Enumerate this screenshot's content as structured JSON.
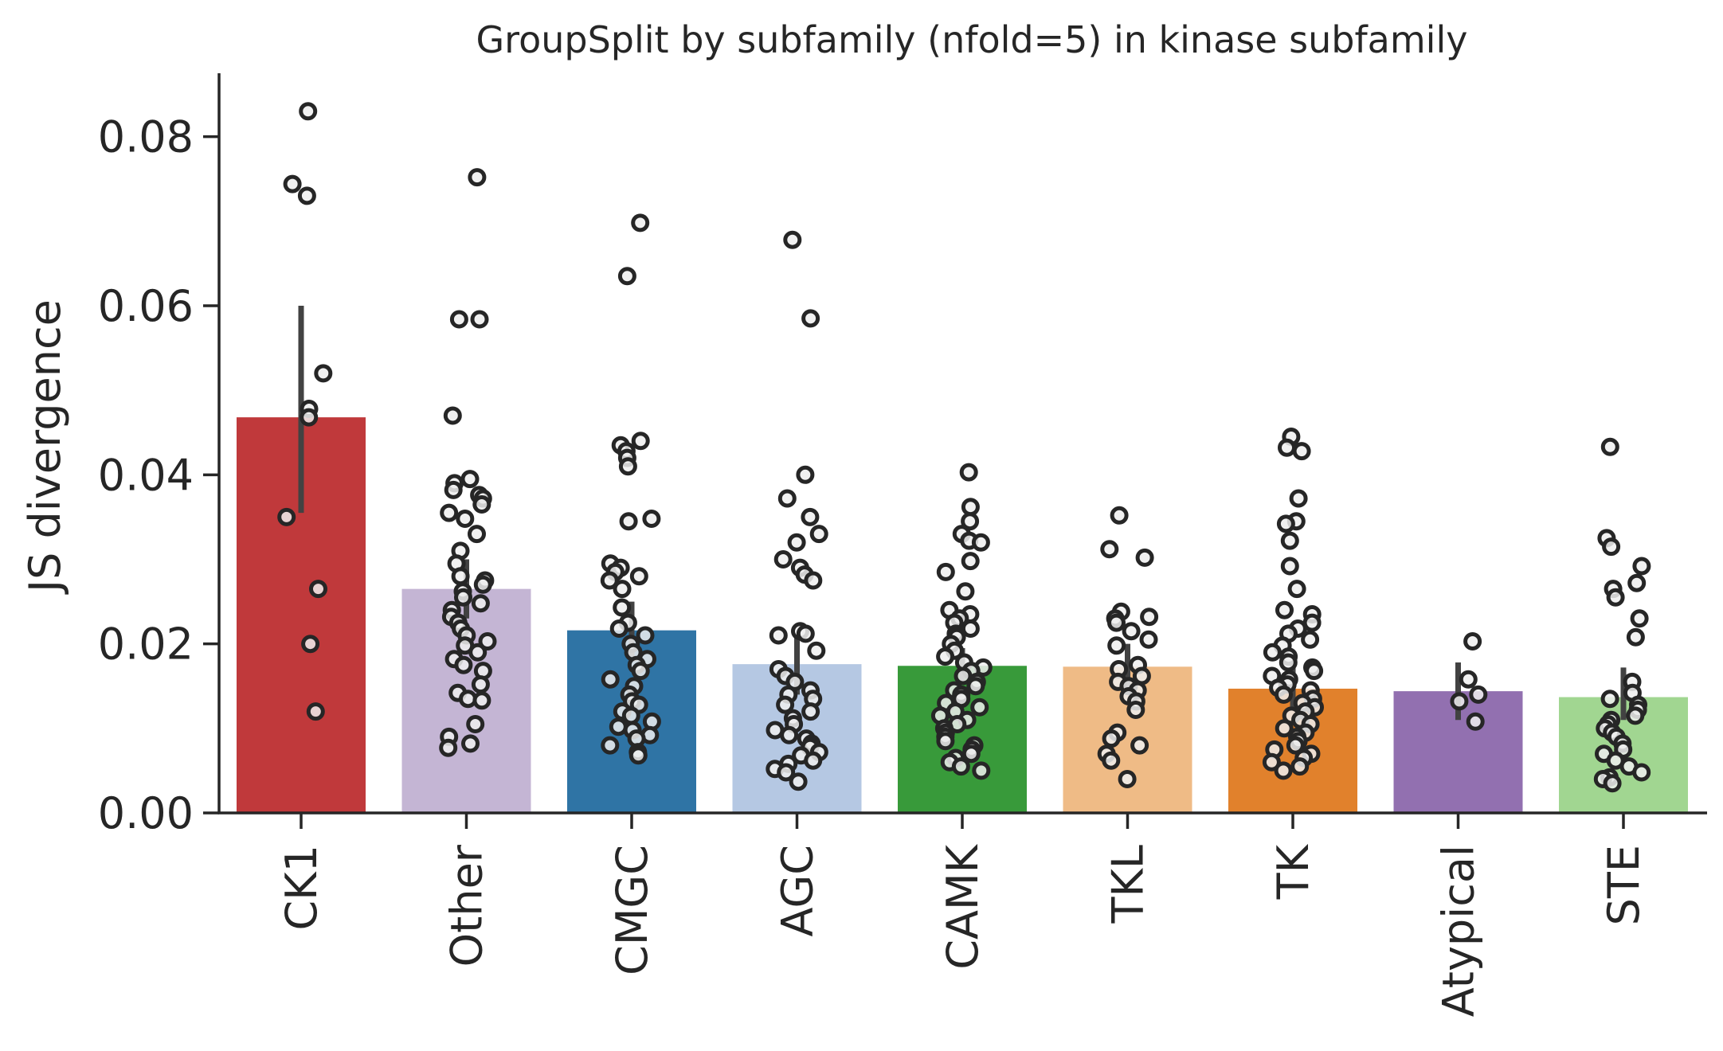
{
  "chart_data": {
    "type": "bar",
    "title": "GroupSplit by subfamily (nfold=5) in kinase subfamily",
    "xlabel": "",
    "ylabel": "JS divergence",
    "ylim": [
      0,
      0.0875
    ],
    "yticks": [
      "0.00",
      "0.02",
      "0.04",
      "0.06",
      "0.08"
    ],
    "grid": false,
    "categories": [
      "CK1",
      "Other",
      "CMGC",
      "AGC",
      "CAMK",
      "TKL",
      "TK",
      "Atypical",
      "STE"
    ],
    "values": [
      0.0468,
      0.0265,
      0.0216,
      0.0176,
      0.0174,
      0.0173,
      0.0147,
      0.0144,
      0.0137
    ],
    "error_bars": [
      [
        0.0355,
        0.06
      ],
      [
        0.023,
        0.03
      ],
      [
        0.0185,
        0.025
      ],
      [
        0.014,
        0.021
      ],
      [
        0.0155,
        0.0195
      ],
      [
        0.0145,
        0.02
      ],
      [
        0.0125,
        0.0175
      ],
      [
        0.011,
        0.0178
      ],
      [
        0.011,
        0.0172
      ]
    ],
    "colors": [
      "#c0393b",
      "#c4b5d4",
      "#2f74a5",
      "#b5c8e3",
      "#389a3a",
      "#efbb86",
      "#e1812c",
      "#9270b0",
      "#a1d691"
    ],
    "points": [
      [
        0.083,
        0.0744,
        0.073,
        0.052,
        0.0478,
        0.0468,
        0.035,
        0.0265,
        0.02,
        0.012
      ],
      [
        0.0752,
        0.0584,
        0.0584,
        0.047,
        0.0395,
        0.039,
        0.0382,
        0.0376,
        0.0372,
        0.0365,
        0.0355,
        0.0348,
        0.033,
        0.031,
        0.0295,
        0.028,
        0.0275,
        0.027,
        0.0262,
        0.0255,
        0.0248,
        0.024,
        0.0232,
        0.0225,
        0.0218,
        0.021,
        0.0203,
        0.0198,
        0.019,
        0.0182,
        0.0175,
        0.0168,
        0.0152,
        0.0142,
        0.0135,
        0.0133,
        0.0105,
        0.009,
        0.0082,
        0.0077
      ],
      [
        0.0698,
        0.0635,
        0.044,
        0.0435,
        0.0428,
        0.042,
        0.041,
        0.0348,
        0.0345,
        0.0295,
        0.029,
        0.0285,
        0.028,
        0.0275,
        0.0265,
        0.0243,
        0.0225,
        0.0218,
        0.021,
        0.02,
        0.019,
        0.0182,
        0.0175,
        0.0168,
        0.0158,
        0.015,
        0.014,
        0.0132,
        0.0128,
        0.012,
        0.0115,
        0.0108,
        0.0102,
        0.0098,
        0.0092,
        0.0088,
        0.008,
        0.0072,
        0.0068
      ],
      [
        0.0678,
        0.0585,
        0.04,
        0.0372,
        0.035,
        0.033,
        0.032,
        0.03,
        0.029,
        0.0282,
        0.0275,
        0.0215,
        0.0212,
        0.021,
        0.0192,
        0.017,
        0.0162,
        0.0155,
        0.0145,
        0.014,
        0.0135,
        0.0128,
        0.012,
        0.0112,
        0.0105,
        0.0098,
        0.0092,
        0.0088,
        0.0082,
        0.0078,
        0.0072,
        0.0068,
        0.0062,
        0.0058,
        0.0052,
        0.0048,
        0.0037
      ],
      [
        0.0403,
        0.0362,
        0.0345,
        0.033,
        0.0322,
        0.032,
        0.0298,
        0.0285,
        0.0262,
        0.024,
        0.0235,
        0.023,
        0.0225,
        0.0218,
        0.0212,
        0.0208,
        0.02,
        0.0192,
        0.0185,
        0.0178,
        0.0172,
        0.0168,
        0.0162,
        0.0155,
        0.015,
        0.0145,
        0.014,
        0.0135,
        0.013,
        0.0125,
        0.012,
        0.0115,
        0.011,
        0.0105,
        0.01,
        0.0095,
        0.009,
        0.0085,
        0.008,
        0.0075,
        0.007,
        0.0065,
        0.006,
        0.0055,
        0.005
      ],
      [
        0.0352,
        0.0312,
        0.0302,
        0.0238,
        0.0232,
        0.023,
        0.0225,
        0.0215,
        0.0205,
        0.0198,
        0.0175,
        0.017,
        0.0162,
        0.0155,
        0.015,
        0.0145,
        0.0138,
        0.0132,
        0.0122,
        0.0095,
        0.0088,
        0.008,
        0.007,
        0.0062,
        0.004
      ],
      [
        0.0445,
        0.0432,
        0.0428,
        0.0372,
        0.0345,
        0.0342,
        0.0322,
        0.0292,
        0.0265,
        0.024,
        0.0235,
        0.0225,
        0.0218,
        0.0212,
        0.0205,
        0.0198,
        0.019,
        0.0185,
        0.0178,
        0.0172,
        0.0168,
        0.0162,
        0.0158,
        0.0152,
        0.0148,
        0.0145,
        0.014,
        0.0135,
        0.013,
        0.0125,
        0.012,
        0.0115,
        0.011,
        0.0105,
        0.01,
        0.0095,
        0.009,
        0.0085,
        0.008,
        0.0075,
        0.007,
        0.0065,
        0.006,
        0.0055,
        0.005
      ],
      [
        0.0203,
        0.0158,
        0.014,
        0.0132,
        0.0108
      ],
      [
        0.0433,
        0.0325,
        0.0315,
        0.0292,
        0.0272,
        0.0265,
        0.0255,
        0.023,
        0.0208,
        0.0155,
        0.0142,
        0.0135,
        0.0128,
        0.0122,
        0.0115,
        0.011,
        0.0105,
        0.01,
        0.0095,
        0.009,
        0.0082,
        0.0075,
        0.007,
        0.0062,
        0.0055,
        0.0048,
        0.0042,
        0.004,
        0.0035
      ]
    ],
    "point_style": {
      "fill": "#eeeeee",
      "stroke": "#262626"
    },
    "errorbar_color": "#424242",
    "axis_color": "#262626"
  }
}
